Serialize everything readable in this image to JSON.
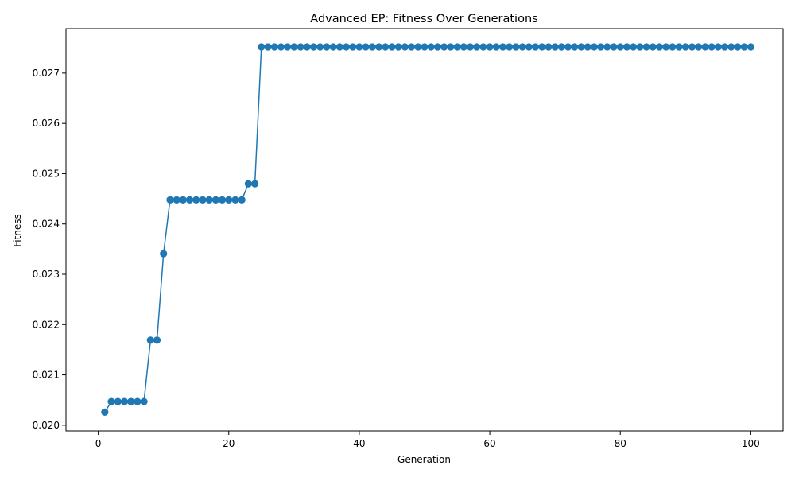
{
  "chart_data": {
    "type": "line",
    "title": "Advanced EP: Fitness Over Generations",
    "xlabel": "Generation",
    "ylabel": "Fitness",
    "xlim": [
      -4.95,
      104.95
    ],
    "ylim": [
      0.019887,
      0.027883
    ],
    "xticks": [
      0,
      20,
      40,
      60,
      80,
      100
    ],
    "yticks": [
      0.02,
      0.021,
      0.022,
      0.023,
      0.024,
      0.025,
      0.026,
      0.027
    ],
    "xtick_labels": [
      "0",
      "20",
      "40",
      "60",
      "80",
      "100"
    ],
    "ytick_labels": [
      "0.020",
      "0.021",
      "0.022",
      "0.023",
      "0.024",
      "0.025",
      "0.026",
      "0.027"
    ],
    "grid": false,
    "marker": "circle",
    "color": "#1f77b4",
    "segments": [
      {
        "from": 1,
        "to": 1,
        "value": 0.02026
      },
      {
        "from": 2,
        "to": 7,
        "value": 0.02047
      },
      {
        "from": 8,
        "to": 9,
        "value": 0.02169
      },
      {
        "from": 10,
        "to": 10,
        "value": 0.02341
      },
      {
        "from": 11,
        "to": 22,
        "value": 0.02448
      },
      {
        "from": 23,
        "to": 24,
        "value": 0.0248
      },
      {
        "from": 25,
        "to": 100,
        "value": 0.02752
      }
    ]
  }
}
